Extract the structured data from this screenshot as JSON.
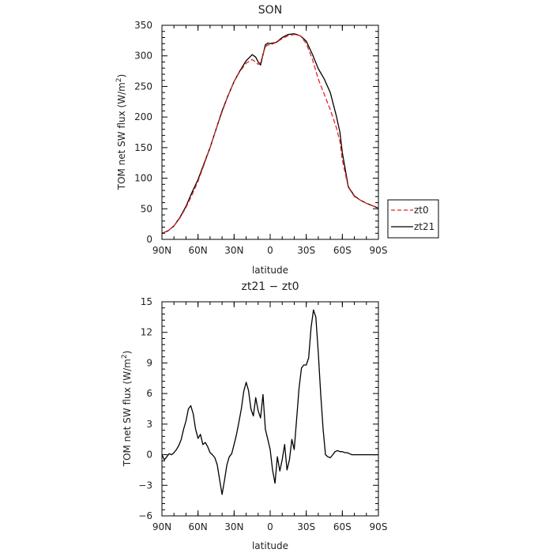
{
  "chart_data": [
    {
      "type": "line",
      "title": "SON",
      "xlabel": "latitude",
      "ylabel_main": "TOM net SW flux (W/m",
      "ylabel_sup": "2",
      "ylabel_close": ")",
      "xticks": [
        {
          "v": 90,
          "label": "90N"
        },
        {
          "v": 60,
          "label": "60N"
        },
        {
          "v": 30,
          "label": "30N"
        },
        {
          "v": 0,
          "label": "0"
        },
        {
          "v": -30,
          "label": "30S"
        },
        {
          "v": -60,
          "label": "60S"
        },
        {
          "v": -90,
          "label": "90S"
        }
      ],
      "xlim": [
        90,
        -90
      ],
      "ylim": [
        0,
        350
      ],
      "yticks": [
        0,
        50,
        100,
        150,
        200,
        250,
        300,
        350
      ],
      "legend": {
        "placement": "right, outside plot"
      },
      "series": [
        {
          "name": "zt0",
          "color": "#e8211e",
          "dash": "dashed",
          "x": [
            90,
            85,
            80,
            75,
            70,
            65,
            60,
            55,
            50,
            45,
            40,
            35,
            30,
            25,
            20,
            15,
            12,
            10,
            8,
            6,
            4,
            2,
            0,
            -5,
            -10,
            -15,
            -20,
            -25,
            -30,
            -35,
            -40,
            -45,
            -50,
            -55,
            -58,
            -60,
            -65,
            -70,
            -75,
            -80,
            -85,
            -90
          ],
          "y": [
            10,
            14,
            22,
            35,
            52,
            73,
            95,
            122,
            150,
            180,
            208,
            235,
            258,
            275,
            288,
            294,
            290,
            286,
            290,
            302,
            315,
            318,
            318,
            322,
            328,
            333,
            335,
            333,
            320,
            295,
            262,
            237,
            212,
            183,
            160,
            130,
            85,
            70,
            64,
            59,
            55,
            51
          ]
        },
        {
          "name": "zt21",
          "color": "#000000",
          "dash": "solid",
          "x": [
            90,
            85,
            80,
            75,
            70,
            65,
            60,
            55,
            50,
            45,
            40,
            35,
            30,
            25,
            20,
            15,
            12,
            10,
            8,
            6,
            4,
            2,
            0,
            -5,
            -10,
            -15,
            -20,
            -25,
            -30,
            -35,
            -40,
            -45,
            -50,
            -55,
            -58,
            -60,
            -65,
            -70,
            -75,
            -80,
            -85,
            -90
          ],
          "y": [
            10,
            14,
            22,
            36,
            54,
            77,
            98,
            124,
            150,
            180,
            210,
            235,
            258,
            276,
            292,
            302,
            298,
            290,
            285,
            302,
            318,
            321,
            320,
            322,
            330,
            335,
            336,
            333,
            324,
            303,
            279,
            262,
            240,
            202,
            175,
            142,
            86,
            71,
            64,
            59,
            55,
            51
          ]
        }
      ]
    },
    {
      "type": "line",
      "title": "zt21 − zt0",
      "xlabel": "latitude",
      "ylabel_main": "TOM net SW flux (W/m",
      "ylabel_sup": "2",
      "ylabel_close": ")",
      "xticks": [
        {
          "v": 90,
          "label": "90N"
        },
        {
          "v": 60,
          "label": "60N"
        },
        {
          "v": 30,
          "label": "30N"
        },
        {
          "v": 0,
          "label": "0"
        },
        {
          "v": -30,
          "label": "30S"
        },
        {
          "v": -60,
          "label": "60S"
        },
        {
          "v": -90,
          "label": "90S"
        }
      ],
      "xlim": [
        90,
        -90
      ],
      "ylim": [
        -6,
        15
      ],
      "yticks": [
        -6,
        -3,
        0,
        3,
        6,
        9,
        12,
        15
      ],
      "series": [
        {
          "name": "zt21 - zt0",
          "color": "#000000",
          "dash": "solid",
          "x": [
            90,
            88,
            86,
            84,
            82,
            80,
            78,
            76,
            74,
            72,
            70,
            68,
            66,
            64,
            62,
            60,
            58,
            56,
            54,
            52,
            50,
            48,
            46,
            44,
            42,
            40,
            38,
            36,
            34,
            32,
            30,
            28,
            26,
            24,
            22,
            20,
            18,
            16,
            14,
            12,
            10,
            8,
            6,
            4,
            2,
            0,
            -2,
            -4,
            -6,
            -8,
            -10,
            -12,
            -14,
            -16,
            -18,
            -20,
            -22,
            -24,
            -26,
            -28,
            -30,
            -32,
            -34,
            -36,
            -38,
            -40,
            -42,
            -44,
            -46,
            -48,
            -50,
            -52,
            -54,
            -56,
            -58,
            -60,
            -62,
            -64,
            -66,
            -68,
            -70,
            -72,
            -74,
            -76,
            -78,
            -80,
            -82,
            -84,
            -86,
            -88,
            -90
          ],
          "y": [
            0,
            -0.5,
            -0.2,
            0.1,
            0,
            0.2,
            0.5,
            0.9,
            1.5,
            2.5,
            3.3,
            4.5,
            4.8,
            4,
            2.5,
            1.6,
            2,
            1,
            1.2,
            0.8,
            0.2,
            0,
            -0.3,
            -1,
            -2.5,
            -3.9,
            -2.5,
            -1,
            -0.2,
            0.1,
            1,
            2,
            3.2,
            4.5,
            6.2,
            7.1,
            6.3,
            4.5,
            3.8,
            5.6,
            4.3,
            3.6,
            5.9,
            2.5,
            1.5,
            0.5,
            -1.5,
            -2.8,
            -0.2,
            -1.6,
            -0.5,
            1,
            -1.5,
            -0.5,
            1.5,
            0.5,
            3.5,
            6.5,
            8.5,
            8.8,
            8.8,
            9.5,
            12.5,
            14.2,
            13.5,
            10,
            6,
            2.5,
            0,
            -0.2,
            -0.3,
            0,
            0.3,
            0.4,
            0.3,
            0.3,
            0.2,
            0.2,
            0.1,
            0,
            0,
            0,
            0,
            0,
            0,
            0,
            0,
            0,
            0,
            0,
            0
          ]
        }
      ]
    }
  ]
}
